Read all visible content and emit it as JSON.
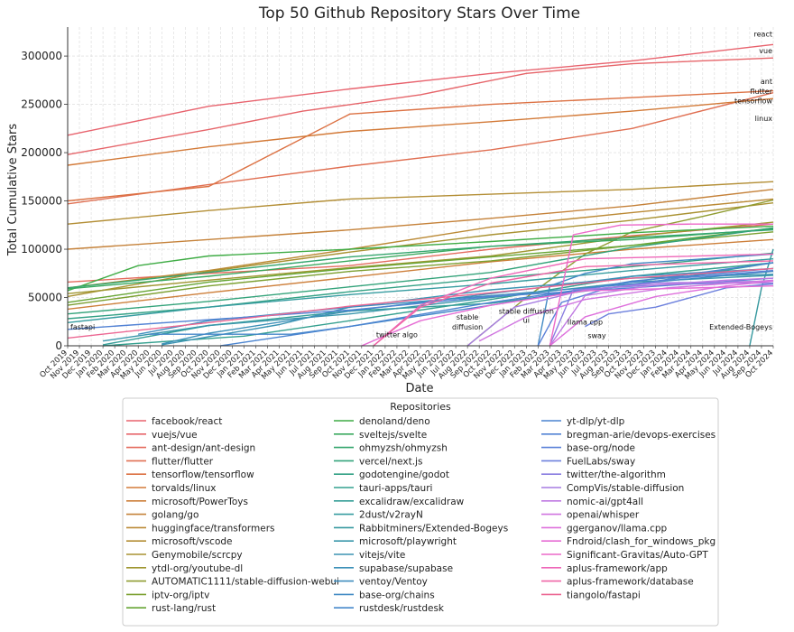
{
  "chart_data": {
    "type": "line",
    "title": "Top 50 Github Repository Stars Over Time",
    "xlabel": "Date",
    "ylabel": "Total Cumulative Stars",
    "ylim": [
      0,
      330000
    ],
    "xlim": [
      "2019-10",
      "2024-10"
    ],
    "yticks": [
      0,
      50000,
      100000,
      150000,
      200000,
      250000,
      300000
    ],
    "xticks": [
      "Oct 2019",
      "Nov 2019",
      "Dec 2019",
      "Jan 2020",
      "Feb 2020",
      "Mar 2020",
      "Apr 2020",
      "May 2020",
      "Jun 2020",
      "Jul 2020",
      "Aug 2020",
      "Sep 2020",
      "Oct 2020",
      "Nov 2020",
      "Dec 2020",
      "Jan 2021",
      "Feb 2021",
      "Mar 2021",
      "Apr 2021",
      "May 2021",
      "Jun 2021",
      "Jul 2021",
      "Aug 2021",
      "Sep 2021",
      "Oct 2021",
      "Nov 2021",
      "Dec 2021",
      "Jan 2022",
      "Feb 2022",
      "Mar 2022",
      "Apr 2022",
      "May 2022",
      "Jun 2022",
      "Jul 2022",
      "Aug 2022",
      "Sep 2022",
      "Oct 2022",
      "Nov 2022",
      "Dec 2022",
      "Jan 2023",
      "Feb 2023",
      "Mar 2023",
      "Apr 2023",
      "May 2023",
      "Jun 2023",
      "Jul 2023",
      "Aug 2023",
      "Sep 2023",
      "Oct 2023",
      "Nov 2023",
      "Dec 2023",
      "Jan 2024",
      "Feb 2024",
      "Mar 2024",
      "Apr 2024",
      "May 2024",
      "Jun 2024",
      "Jul 2024",
      "Aug 2024",
      "Sep 2024",
      "Oct 2024"
    ],
    "grid": true,
    "legend_title": "Repositories",
    "legend_placement": "bottom",
    "annotations": [
      {
        "text": "react",
        "x": "2024-09",
        "y": 320000
      },
      {
        "text": "vue",
        "x": "2024-09",
        "y": 303000
      },
      {
        "text": "ant",
        "x": "2024-09",
        "y": 271000
      },
      {
        "text": "flutter",
        "x": "2024-09",
        "y": 261000
      },
      {
        "text": "tensorflow",
        "x": "2024-09",
        "y": 251000
      },
      {
        "text": "linux",
        "x": "2024-09",
        "y": 233000
      },
      {
        "text": "fastapi",
        "x": "2019-10",
        "y": 17000
      },
      {
        "text": "twitter algo",
        "x": "2022-02",
        "y": 9000
      },
      {
        "text": "stable",
        "x": "2022-08",
        "y": 27000
      },
      {
        "text": "diffusion",
        "x": "2022-08",
        "y": 17000
      },
      {
        "text": "stable diffusion",
        "x": "2023-01",
        "y": 33000
      },
      {
        "text": "ui",
        "x": "2023-01",
        "y": 24000
      },
      {
        "text": "llama cpp",
        "x": "2023-06",
        "y": 22000
      },
      {
        "text": "sway",
        "x": "2023-07",
        "y": 8000
      },
      {
        "text": "Extended-Bogeys",
        "x": "2024-08",
        "y": 17000
      }
    ],
    "series": [
      {
        "name": "facebook/react",
        "color": "#e8636e",
        "x": [
          "2019-10",
          "2020-10",
          "2021-10",
          "2022-10",
          "2023-10",
          "2024-10"
        ],
        "y": [
          218000,
          248000,
          266000,
          282000,
          295000,
          312000
        ]
      },
      {
        "name": "vuejs/vue",
        "color": "#e6656a",
        "x": [
          "2019-10",
          "2020-10",
          "2021-06",
          "2022-04",
          "2023-01",
          "2023-10",
          "2024-10"
        ],
        "y": [
          198000,
          224000,
          243000,
          260000,
          282000,
          292000,
          298000
        ]
      },
      {
        "name": "ant-design/ant-design",
        "color": "#e46b5e",
        "x": [
          "2019-10",
          "2020-10",
          "2021-10",
          "2022-10",
          "2023-10",
          "2024-10"
        ],
        "y": [
          66000,
          75000,
          83000,
          100000,
          114000,
          126000
        ]
      },
      {
        "name": "flutter/flutter",
        "color": "#e06f52",
        "x": [
          "2019-10",
          "2020-10",
          "2021-10",
          "2022-10",
          "2023-10",
          "2024-10"
        ],
        "y": [
          147000,
          167000,
          186000,
          203000,
          225000,
          262000
        ]
      },
      {
        "name": "tensorflow/tensorflow",
        "color": "#dc7143",
        "x": [
          "2019-10",
          "2020-10",
          "2021-10",
          "2022-10",
          "2023-10",
          "2024-10"
        ],
        "y": [
          150000,
          165000,
          240000,
          250000,
          257000,
          264000
        ]
      },
      {
        "name": "torvalds/linux",
        "color": "#d37a38",
        "x": [
          "2019-10",
          "2020-10",
          "2021-10",
          "2022-10",
          "2023-10",
          "2024-10"
        ],
        "y": [
          187000,
          206000,
          222000,
          232000,
          243000,
          256000
        ]
      },
      {
        "name": "microsoft/PowerToys",
        "color": "#cd7f3a",
        "x": [
          "2019-10",
          "2020-10",
          "2021-10",
          "2022-10",
          "2023-10",
          "2024-10"
        ],
        "y": [
          38000,
          55000,
          71000,
          87000,
          100000,
          110000
        ]
      },
      {
        "name": "golang/go",
        "color": "#c5823a",
        "x": [
          "2019-10",
          "2020-10",
          "2021-10",
          "2022-10",
          "2023-10",
          "2024-10"
        ],
        "y": [
          100000,
          110000,
          120000,
          132000,
          145000,
          162000
        ]
      },
      {
        "name": "huggingface/transformers",
        "color": "#bb8a36",
        "x": [
          "2019-10",
          "2020-10",
          "2021-10",
          "2022-10",
          "2023-10",
          "2024-10"
        ],
        "y": [
          60000,
          78000,
          100000,
          123000,
          138000,
          152000
        ]
      },
      {
        "name": "microsoft/vscode",
        "color": "#b38e35",
        "x": [
          "2019-10",
          "2020-10",
          "2021-10",
          "2022-10",
          "2023-10",
          "2024-10"
        ],
        "y": [
          126000,
          140000,
          152000,
          157000,
          162000,
          170000
        ]
      },
      {
        "name": "Genymobile/scrcpy",
        "color": "#a99232",
        "x": [
          "2019-10",
          "2020-10",
          "2021-10",
          "2022-10",
          "2023-10",
          "2024-10"
        ],
        "y": [
          51000,
          77000,
          97000,
          115000,
          130000,
          148000
        ]
      },
      {
        "name": "ytdl-org/youtube-dl",
        "color": "#9f9630",
        "x": [
          "2019-10",
          "2020-10",
          "2021-10",
          "2022-10",
          "2023-10",
          "2024-10"
        ],
        "y": [
          54000,
          68000,
          81000,
          93000,
          113000,
          128000
        ]
      },
      {
        "name": "AUTOMATIC1111/stable-diffusion-webui",
        "color": "#8f9c30",
        "x": [
          "2022-08",
          "2023-01",
          "2023-06",
          "2023-10",
          "2024-04",
          "2024-10"
        ],
        "y": [
          0,
          50000,
          95000,
          118000,
          134000,
          151000
        ]
      },
      {
        "name": "iptv-org/iptv",
        "color": "#7ca031",
        "x": [
          "2019-10",
          "2020-10",
          "2021-10",
          "2022-10",
          "2023-10",
          "2024-10"
        ],
        "y": [
          42000,
          62000,
          77000,
          88000,
          104000,
          118000
        ]
      },
      {
        "name": "rust-lang/rust",
        "color": "#66a534",
        "x": [
          "2019-10",
          "2020-10",
          "2021-10",
          "2022-10",
          "2023-10",
          "2024-10"
        ],
        "y": [
          45000,
          66000,
          80000,
          92000,
          104000,
          122000
        ]
      },
      {
        "name": "denoland/deno",
        "color": "#3fac45",
        "x": [
          "2019-10",
          "2020-04",
          "2020-10",
          "2021-10",
          "2022-10",
          "2023-10",
          "2024-10"
        ],
        "y": [
          57000,
          83000,
          93000,
          100000,
          108000,
          117000,
          124000
        ]
      },
      {
        "name": "sveltejs/svelte",
        "color": "#3aa95e",
        "x": [
          "2019-10",
          "2020-10",
          "2021-10",
          "2022-10",
          "2023-10",
          "2024-10"
        ],
        "y": [
          59000,
          72000,
          88000,
          103000,
          110000,
          121000
        ]
      },
      {
        "name": "ohmyzsh/ohmyzsh",
        "color": "#35a66e",
        "x": [
          "2019-10",
          "2020-10",
          "2021-10",
          "2022-10",
          "2023-10",
          "2024-10"
        ],
        "y": [
          60000,
          76000,
          92000,
          103000,
          112000,
          120000
        ]
      },
      {
        "name": "vercel/next.js",
        "color": "#33a37a",
        "x": [
          "2019-10",
          "2020-10",
          "2021-10",
          "2022-10",
          "2023-10",
          "2024-10"
        ],
        "y": [
          33000,
          46000,
          61000,
          76000,
          102000,
          122000
        ]
      },
      {
        "name": "godotengine/godot",
        "color": "#33a185",
        "x": [
          "2019-10",
          "2020-10",
          "2021-10",
          "2022-10",
          "2023-10",
          "2024-10"
        ],
        "y": [
          28000,
          40000,
          56000,
          70000,
          82000,
          96000
        ]
      },
      {
        "name": "tauri-apps/tauri",
        "color": "#34a08f",
        "x": [
          "2020-01",
          "2021-01",
          "2021-10",
          "2022-10",
          "2023-10",
          "2024-10"
        ],
        "y": [
          0,
          10000,
          26000,
          48000,
          72000,
          86000
        ]
      },
      {
        "name": "excalidraw/excalidraw",
        "color": "#359e98",
        "x": [
          "2020-01",
          "2020-10",
          "2021-10",
          "2022-10",
          "2023-10",
          "2024-10"
        ],
        "y": [
          1000,
          21000,
          36000,
          44000,
          63000,
          86000
        ]
      },
      {
        "name": "2dust/v2rayN",
        "color": "#369ca0",
        "x": [
          "2019-10",
          "2020-10",
          "2021-10",
          "2022-10",
          "2023-10",
          "2024-10"
        ],
        "y": [
          24000,
          40000,
          53000,
          64000,
          78000,
          90000
        ]
      },
      {
        "name": "Rabbitminers/Extended-Bogeys",
        "color": "#37999f",
        "x": [
          "2024-08",
          "2024-09",
          "2024-10"
        ],
        "y": [
          0,
          60000,
          100000
        ]
      },
      {
        "name": "microsoft/playwright",
        "color": "#3996ab",
        "x": [
          "2020-01",
          "2020-10",
          "2021-10",
          "2022-10",
          "2023-10",
          "2024-10"
        ],
        "y": [
          5000,
          21000,
          33000,
          50000,
          66000,
          73000
        ]
      },
      {
        "name": "vitejs/vite",
        "color": "#3b93b2",
        "x": [
          "2020-06",
          "2021-04",
          "2021-10",
          "2022-10",
          "2023-10",
          "2024-10"
        ],
        "y": [
          1000,
          22000,
          40000,
          58000,
          70000,
          74000
        ]
      },
      {
        "name": "supabase/supabase",
        "color": "#3d90b8",
        "x": [
          "2020-06",
          "2020-10",
          "2021-10",
          "2022-10",
          "2023-10",
          "2024-10"
        ],
        "y": [
          2000,
          13000,
          36000,
          54000,
          72000,
          80000
        ]
      },
      {
        "name": "ventoy/Ventoy",
        "color": "#3f8dbe",
        "x": [
          "2020-04",
          "2020-10",
          "2021-10",
          "2022-10",
          "2023-10",
          "2024-10"
        ],
        "y": [
          12000,
          26000,
          40000,
          52000,
          64000,
          77000
        ]
      },
      {
        "name": "base-org/chains",
        "color": "#428ac4",
        "x": [
          "2023-02",
          "2023-03",
          "2023-06",
          "2023-10",
          "2024-10"
        ],
        "y": [
          0,
          62000,
          75000,
          85000,
          95000
        ]
      },
      {
        "name": "rustdesk/rustdesk",
        "color": "#4587ca",
        "x": [
          "2020-05",
          "2021-05",
          "2021-10",
          "2022-10",
          "2023-10",
          "2024-10"
        ],
        "y": [
          12000,
          12000,
          20000,
          42000,
          67000,
          80000
        ]
      },
      {
        "name": "yt-dlp/yt-dlp",
        "color": "#4a84d0",
        "x": [
          "2020-11",
          "2021-10",
          "2022-10",
          "2023-10",
          "2024-10"
        ],
        "y": [
          0,
          20000,
          45000,
          66000,
          86000
        ]
      },
      {
        "name": "bregman-arie/devops-exercises",
        "color": "#5282d4",
        "x": [
          "2019-10",
          "2020-10",
          "2021-10",
          "2022-10",
          "2023-10",
          "2024-10"
        ],
        "y": [
          17000,
          27000,
          37000,
          51000,
          60000,
          70000
        ]
      },
      {
        "name": "base-org/node",
        "color": "#5b81d8",
        "x": [
          "2023-02",
          "2023-04",
          "2023-08",
          "2024-02",
          "2024-10"
        ],
        "y": [
          0,
          45000,
          60000,
          70000,
          78000
        ]
      },
      {
        "name": "FuelLabs/sway",
        "color": "#6c80dd",
        "x": [
          "2023-06",
          "2023-08",
          "2023-12",
          "2024-06",
          "2024-10"
        ],
        "y": [
          20000,
          33000,
          40000,
          60000,
          64000
        ]
      },
      {
        "name": "twitter/the-algorithm",
        "color": "#8a7ee0",
        "x": [
          "2023-03",
          "2023-05",
          "2023-12",
          "2024-06",
          "2024-10"
        ],
        "y": [
          1000,
          58000,
          63000,
          65000,
          65000
        ]
      },
      {
        "name": "CompVis/stable-diffusion",
        "color": "#a67ce2",
        "x": [
          "2022-08",
          "2022-12",
          "2023-06",
          "2023-12",
          "2024-10"
        ],
        "y": [
          0,
          40000,
          58000,
          65000,
          67000
        ]
      },
      {
        "name": "nomic-ai/gpt4all",
        "color": "#bf79e2",
        "x": [
          "2023-03",
          "2023-06",
          "2023-12",
          "2024-06",
          "2024-10"
        ],
        "y": [
          0,
          52000,
          63000,
          68000,
          70000
        ]
      },
      {
        "name": "openai/whisper",
        "color": "#d075e0",
        "x": [
          "2022-09",
          "2023-01",
          "2023-06",
          "2024-01",
          "2024-10"
        ],
        "y": [
          5000,
          30000,
          48000,
          60000,
          68000
        ]
      },
      {
        "name": "ggerganov/llama.cpp",
        "color": "#de70dc",
        "x": [
          "2023-03",
          "2023-06",
          "2023-12",
          "2024-06",
          "2024-10"
        ],
        "y": [
          0,
          30000,
          51000,
          62000,
          67000
        ]
      },
      {
        "name": "Fndroid/clash_for_windows_pkg",
        "color": "#e66cd4",
        "x": [
          "2021-11",
          "2022-04",
          "2022-10",
          "2023-06",
          "2024-10"
        ],
        "y": [
          0,
          26000,
          42000,
          57000,
          62000
        ]
      },
      {
        "name": "Significant-Gravitas/Auto-GPT",
        "color": "#ec69c8",
        "x": [
          "2023-03",
          "2023-05",
          "2023-09",
          "2024-03",
          "2024-10"
        ],
        "y": [
          0,
          115000,
          125000,
          126000,
          126000
        ]
      },
      {
        "name": "aplus-framework/app",
        "color": "#ee67b8",
        "x": [
          "2021-12",
          "2022-04",
          "2022-10",
          "2023-06",
          "2024-10"
        ],
        "y": [
          0,
          42000,
          70000,
          90000,
          95000
        ]
      },
      {
        "name": "aplus-framework/database",
        "color": "#ef66a6",
        "x": [
          "2021-12",
          "2022-04",
          "2022-10",
          "2023-06",
          "2024-10"
        ],
        "y": [
          0,
          40000,
          65000,
          82000,
          88000
        ]
      },
      {
        "name": "tiangolo/fastapi",
        "color": "#ec6793",
        "x": [
          "2019-10",
          "2020-10",
          "2021-10",
          "2022-10",
          "2023-10",
          "2024-10"
        ],
        "y": [
          8000,
          24000,
          41000,
          55000,
          70000,
          80000
        ]
      }
    ]
  }
}
